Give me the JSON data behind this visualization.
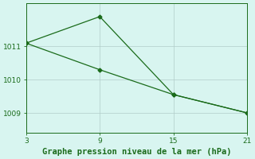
{
  "x": [
    3,
    9,
    15,
    21
  ],
  "line1_y": [
    1011.1,
    1011.9,
    1009.55,
    1009.0
  ],
  "line2_y": [
    1011.1,
    1010.3,
    1009.55,
    1009.0
  ],
  "line_color": "#1a6b1a",
  "bg_color": "#d8f5f0",
  "grid_color": "#b0ccc8",
  "xlabel": "Graphe pression niveau de la mer (hPa)",
  "xlim": [
    3,
    21
  ],
  "ylim": [
    1008.4,
    1012.3
  ],
  "xticks": [
    3,
    9,
    15,
    21
  ],
  "yticks": [
    1009,
    1010,
    1011
  ],
  "marker": "D",
  "marker_size": 2.5,
  "line_width": 0.9,
  "xlabel_fontsize": 7.5,
  "tick_fontsize": 6.5
}
